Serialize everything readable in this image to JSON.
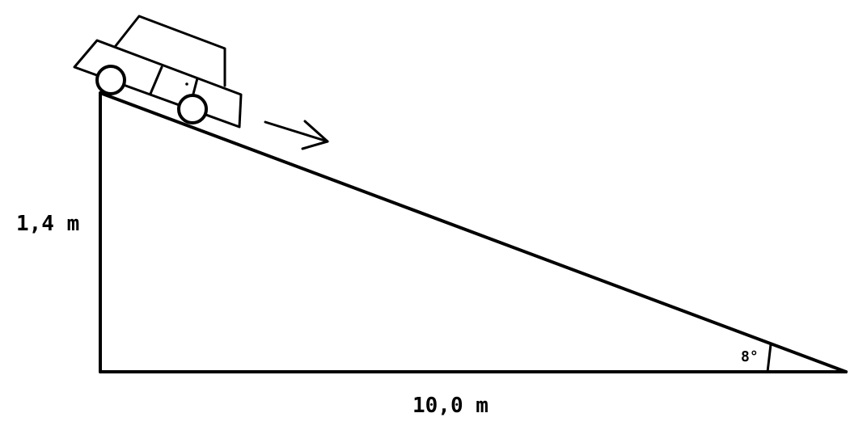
{
  "labels": {
    "height": "1,4 m",
    "base": "10,0 m",
    "angle": "8°"
  }
}
